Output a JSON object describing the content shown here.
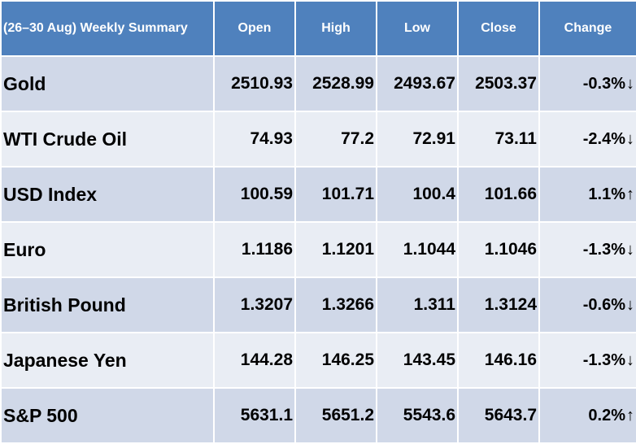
{
  "table": {
    "headers": [
      "(26–30  Aug) Weekly Summary",
      "Open",
      "High",
      "Low",
      "Close",
      "Change"
    ],
    "rows": [
      {
        "name": "Gold",
        "open": "2510.93",
        "high": "2528.99",
        "low": "2493.67",
        "close": "2503.37",
        "change": "-0.3%",
        "direction": "down",
        "arrow": "↓"
      },
      {
        "name": "WTI Crude Oil",
        "open": "74.93",
        "high": "77.2",
        "low": "72.91",
        "close": "73.11",
        "change": "-2.4%",
        "direction": "down",
        "arrow": "↓"
      },
      {
        "name": "USD Index",
        "open": "100.59",
        "high": "101.71",
        "low": "100.4",
        "close": "101.66",
        "change": "1.1%",
        "direction": "up",
        "arrow": "↑"
      },
      {
        "name": "Euro",
        "open": "1.1186",
        "high": "1.1201",
        "low": "1.1044",
        "close": "1.1046",
        "change": "-1.3%",
        "direction": "down",
        "arrow": "↓"
      },
      {
        "name": "British Pound",
        "open": "1.3207",
        "high": "1.3266",
        "low": "1.311",
        "close": "1.3124",
        "change": "-0.6%",
        "direction": "down",
        "arrow": "↓"
      },
      {
        "name": "Japanese Yen",
        "open": "144.28",
        "high": "146.25",
        "low": "143.45",
        "close": "146.16",
        "change": "-1.3%",
        "direction": "down",
        "arrow": "↓"
      },
      {
        "name": "S&P 500",
        "open": "5631.1",
        "high": "5651.2",
        "low": "5543.6",
        "close": "5643.7",
        "change": "0.2%",
        "direction": "up",
        "arrow": "↑"
      }
    ]
  },
  "colors": {
    "header_bg": "#4f81bd",
    "row_odd_bg": "#d0d8e8",
    "row_even_bg": "#e9edf4",
    "down": "#e8141c",
    "up": "#00b050"
  }
}
